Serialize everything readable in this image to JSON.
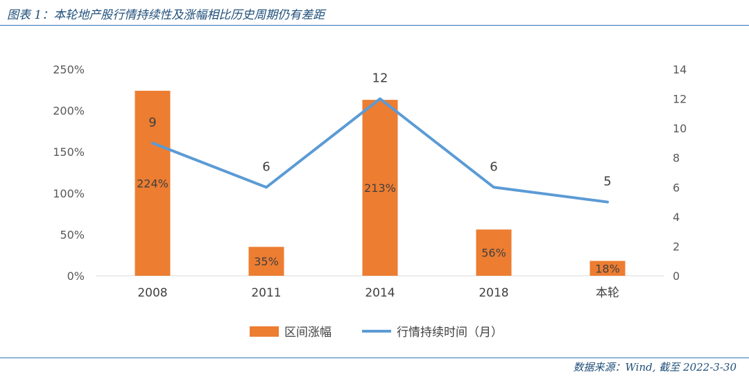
{
  "header": {
    "title": "图表 1：本轮地产股行情持续性及涨幅相比历史周期仍有差距"
  },
  "footer": {
    "source": "数据来源：Wind, 截至 2022-3-30"
  },
  "colors": {
    "bar": "#ed7d31",
    "line": "#5b9bd5",
    "rule": "#2e75b6"
  },
  "chart_data": {
    "type": "bar",
    "categories": [
      "2008",
      "2011",
      "2014",
      "2018",
      "本轮"
    ],
    "series": [
      {
        "name": "区间涨幅",
        "type": "bar",
        "axis": "left",
        "values": [
          224,
          35,
          213,
          56,
          18
        ],
        "labels": [
          "224%",
          "35%",
          "213%",
          "56%",
          "18%"
        ]
      },
      {
        "name": "行情持续时间（月）",
        "type": "line",
        "axis": "right",
        "values": [
          9,
          6,
          12,
          6,
          5
        ],
        "labels": [
          "9",
          "6",
          "12",
          "6",
          "5"
        ]
      }
    ],
    "y_left": {
      "ylim": [
        0,
        250
      ],
      "ticks": [
        "0%",
        "50%",
        "100%",
        "150%",
        "200%",
        "250%"
      ]
    },
    "y_right": {
      "ylim": [
        0,
        14
      ],
      "ticks": [
        "0",
        "2",
        "4",
        "6",
        "8",
        "10",
        "12",
        "14"
      ]
    },
    "legend": "bottom",
    "grid": false
  }
}
